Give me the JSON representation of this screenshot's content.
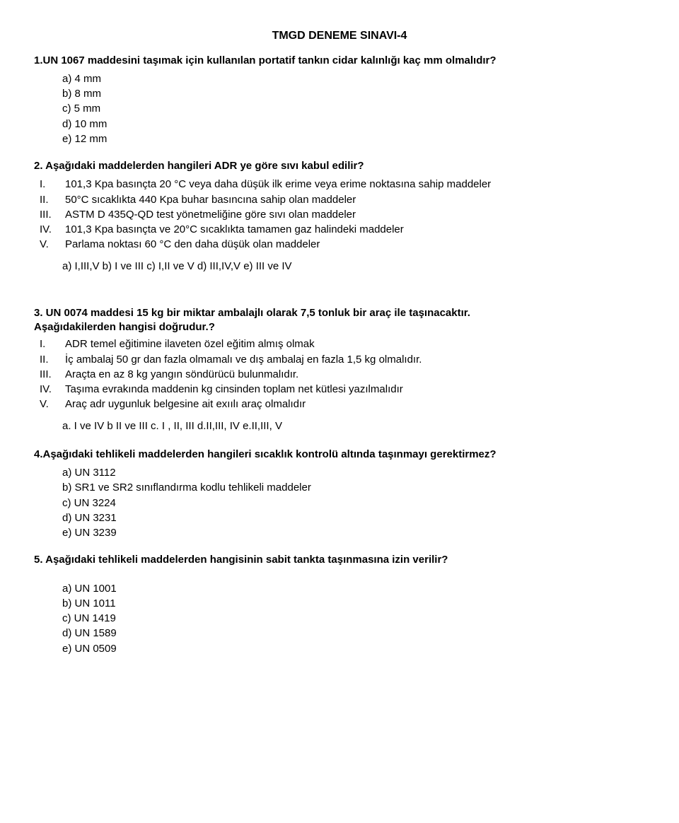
{
  "title": "TMGD DENEME SINAVI-4",
  "q1": {
    "text": "1.UN 1067 maddesini taşımak için kullanılan portatif tankın cidar kalınlığı kaç mm olmalıdır?",
    "opts": {
      "a": "a)  4 mm",
      "b": "b)  8 mm",
      "c": "c)  5 mm",
      "d": "d)  10 mm",
      "e": "e)  12 mm"
    }
  },
  "q2": {
    "text": "2. Aşağıdaki maddelerden hangileri ADR ye göre sıvı kabul edilir?",
    "roman": {
      "i": {
        "label": "I.",
        "text": "101,3 Kpa basınçta 20 °C veya daha düşük ilk erime veya erime noktasına sahip maddeler"
      },
      "ii": {
        "label": "II.",
        "text": "50°C sıcaklıkta 440 Kpa buhar basıncına sahip olan maddeler"
      },
      "iii": {
        "label": "III.",
        "text": "ASTM D 435Q-QD test yönetmeliğine göre sıvı olan maddeler"
      },
      "iv": {
        "label": "IV.",
        "text": "101,3 Kpa basınçta ve 20°C sıcaklıkta tamamen gaz halindeki maddeler"
      },
      "v": {
        "label": "V.",
        "text": "Parlama noktası 60 °C den daha düşük olan maddeler"
      }
    },
    "ans": "a)  I,III,V  b)  I ve III  c)  I,II ve V  d)  III,IV,V  e)  III ve IV"
  },
  "q3": {
    "text": "3. UN 0074 maddesi 15 kg bir miktar ambalajlı olarak 7,5 tonluk bir araç ile taşınacaktır.",
    "follow": "Aşağıdakilerden hangisi doğrudur.?",
    "roman": {
      "i": {
        "label": "I.",
        "text": "ADR temel eğitimine ilaveten özel eğitim almış olmak"
      },
      "ii": {
        "label": "II.",
        "text": "İç ambalaj 50 gr dan fazla olmamalı ve dış ambalaj en fazla 1,5 kg olmalıdır."
      },
      "iii": {
        "label": "III.",
        "text": "Araçta en az 8 kg yangın söndürücü bulunmalıdır."
      },
      "iv": {
        "label": "IV.",
        "text": "Taşıma evrakında maddenin kg cinsinden toplam  net kütlesi yazılmalıdır"
      },
      "v": {
        "label": "V.",
        "text": "Araç adr uygunluk belgesine ait exıılı araç olmalıdır"
      }
    },
    "ans": "a.  I ve IV  b II ve III  c. I , II, III  d.II,III, IV   e.II,III, V"
  },
  "q4": {
    "text": "4.Aşağıdaki tehlikeli maddelerden hangileri sıcaklık kontrolü altında taşınmayı gerektirmez?",
    "opts": {
      "a": "a)  UN 3112",
      "b": "b)  SR1 ve SR2 sınıflandırma kodlu tehlikeli maddeler",
      "c": "c)  UN 3224",
      "d": "d)  UN 3231",
      "e": "e)  UN 3239"
    }
  },
  "q5": {
    "text": "5.  Aşağıdaki tehlikeli maddelerden hangisinin sabit tankta taşınmasına izin verilir?",
    "opts": {
      "a": "a)  UN 1001",
      "b": "b)  UN 1011",
      "c": "c)  UN 1419",
      "d": "d)  UN 1589",
      "e": "e)  UN 0509"
    }
  }
}
